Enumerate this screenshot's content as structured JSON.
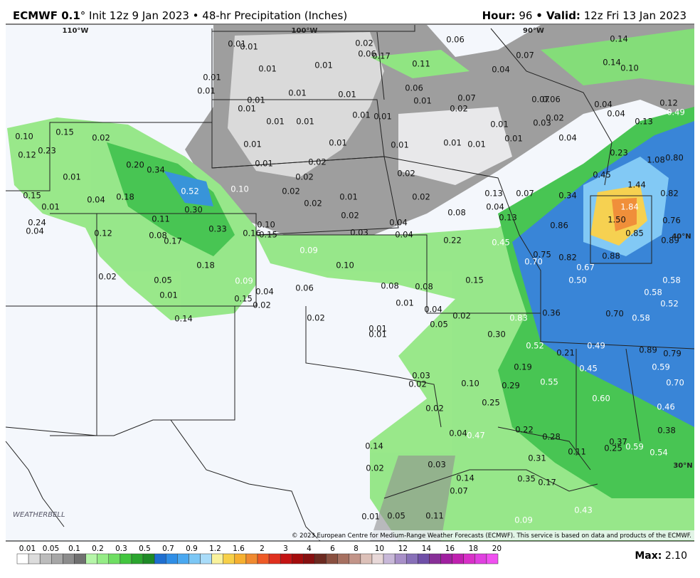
{
  "header": {
    "model": "ECMWF 0.1",
    "degree": "°",
    "title": " Init 12z 9 Jan 2023 • 48-hr Precipitation (Inches)",
    "hour_label": "Hour:",
    "hour": "96",
    "valid_label": "• Valid:",
    "valid": " 12z Fri 13 Jan 2023"
  },
  "map": {
    "grid_labels": [
      "110°W",
      "100°W",
      "90°W",
      "40°N",
      "30°N"
    ],
    "values": [
      "0.01",
      "0.01",
      "0.02",
      "0.06",
      "0.17",
      "0.06",
      "0.14",
      "0.07",
      "0.01",
      "0.01",
      "0.11",
      "0.04",
      "0.14",
      "0.10",
      "0.01",
      "0.01",
      "0.01",
      "0.01",
      "0.06",
      "0.07",
      "0.07",
      "0.06",
      "0.01",
      "0.01",
      "0.01",
      "0.02",
      "0.04",
      "0.12",
      "0.49",
      "0.04",
      "0.01",
      "0.01",
      "0.01",
      "0.01",
      "0.01",
      "0.03",
      "0.02",
      "0.13",
      "0.10",
      "0.15",
      "0.02",
      "0.01",
      "0.01",
      "0.01",
      "0.01",
      "0.01",
      "0.01",
      "0.04",
      "0.23",
      "0.12",
      "0.23",
      "1.08",
      "0.80",
      "0.20",
      "0.34",
      "0.01",
      "0.02",
      "0.02",
      "0.45",
      "0.01",
      "0.02",
      "0.52",
      "0.10",
      "0.02",
      "1.44",
      "0.82",
      "0.15",
      "0.04",
      "0.18",
      "0.01",
      "0.02",
      "0.13",
      "0.07",
      "0.34",
      "0.01",
      "0.02",
      "0.30",
      "0.08",
      "0.04",
      "1.84",
      "0.24",
      "0.04",
      "0.11",
      "0.02",
      "0.13",
      "0.86",
      "1.50",
      "0.76",
      "0.33",
      "0.10",
      "0.12",
      "0.08",
      "0.16",
      "0.15",
      "0.03",
      "0.04",
      "0.04",
      "0.85",
      "0.89",
      "0.17",
      "0.22",
      "0.45",
      "0.09",
      "0.75",
      "0.82",
      "0.88",
      "0.70",
      "0.18",
      "0.10",
      "0.67",
      "0.02",
      "0.05",
      "0.09",
      "0.15",
      "0.50",
      "0.58",
      "0.06",
      "0.08",
      "0.08",
      "0.04",
      "0.01",
      "0.15",
      "0.02",
      "0.01",
      "0.58",
      "0.52",
      "0.04",
      "0.36",
      "0.70",
      "0.58",
      "0.02",
      "0.83",
      "0.14",
      "0.02",
      "0.05",
      "0.01",
      "0.01",
      "0.30",
      "0.52",
      "0.49",
      "0.89",
      "0.79",
      "0.21",
      "0.59",
      "0.19",
      "0.45",
      "0.03",
      "0.02",
      "0.10",
      "0.29",
      "0.55",
      "0.70",
      "0.60",
      "0.25",
      "0.02",
      "0.46",
      "0.22",
      "0.04",
      "0.47",
      "0.28",
      "0.38",
      "0.14",
      "0.37",
      "0.25",
      "0.59",
      "0.11",
      "0.54",
      "0.31",
      "0.02",
      "0.03",
      "0.17",
      "0.14",
      "0.35",
      "0.07",
      "0.43",
      "0.01",
      "0.05",
      "0.11",
      "0.09"
    ],
    "logo": "WEATHERBELL",
    "credit": "© 2023 European Centre for Medium-Range Weather Forecasts (ECMWF). This service is based on data and products of the ECMWF."
  },
  "legend": {
    "labels": [
      "0.01",
      "0.05",
      "0.1",
      "0.2",
      "0.3",
      "0.5",
      "0.7",
      "0.9",
      "1.2",
      "1.6",
      "2",
      "3",
      "4",
      "6",
      "8",
      "10",
      "12",
      "14",
      "16",
      "18",
      "20"
    ],
    "max_label": "Max:",
    "max": "2.10"
  }
}
